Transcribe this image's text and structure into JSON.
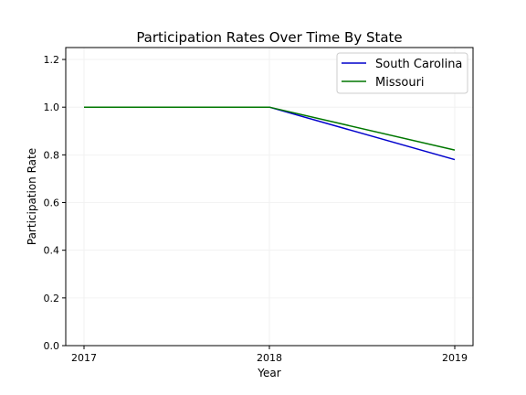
{
  "chart_data": {
    "type": "line",
    "title": "Participation Rates Over Time By State",
    "xlabel": "Year",
    "ylabel": "Participation Rate",
    "x": [
      2017,
      2018,
      2019
    ],
    "x_tick_labels": [
      "2017",
      "2018",
      "2019"
    ],
    "ylim": [
      0,
      1.25
    ],
    "y_ticks": [
      0.0,
      0.2,
      0.4,
      0.6,
      0.8,
      1.0,
      1.2
    ],
    "y_tick_labels": [
      "0.0",
      "0.2",
      "0.4",
      "0.6",
      "0.8",
      "1.0",
      "1.2"
    ],
    "grid": true,
    "legend_position": "top-right",
    "series": [
      {
        "name": "South Carolina",
        "color": "#0000cc",
        "values": [
          1.0,
          1.0,
          0.78
        ]
      },
      {
        "name": "Missouri",
        "color": "#007700",
        "values": [
          1.0,
          1.0,
          0.82
        ]
      }
    ]
  }
}
